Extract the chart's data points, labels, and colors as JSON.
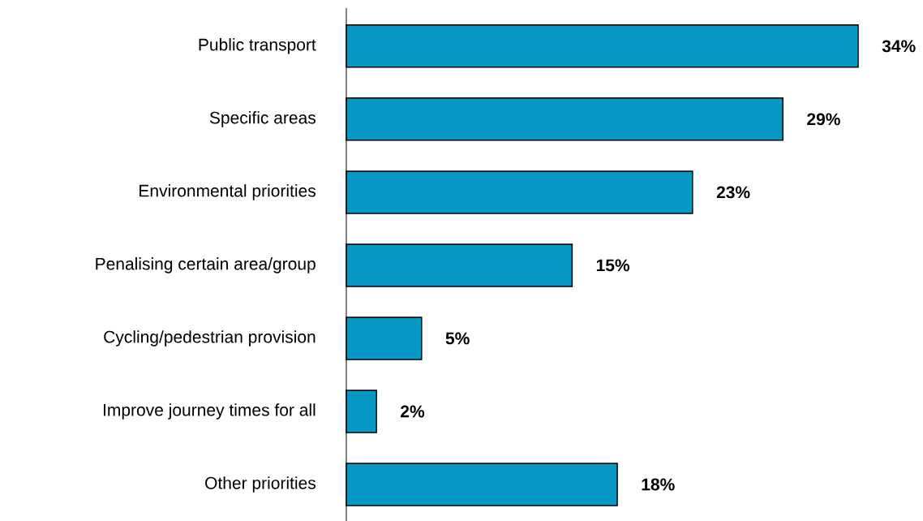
{
  "chart_data": {
    "type": "bar",
    "orientation": "horizontal",
    "categories": [
      "Public transport",
      "Specific areas",
      "Environmental priorities",
      "Penalising certain area/group",
      "Cycling/pedestrian provision",
      "Improve journey times for all",
      "Other priorities"
    ],
    "values": [
      34,
      29,
      23,
      15,
      5,
      2,
      18
    ],
    "value_labels": [
      "34%",
      "29%",
      "23%",
      "15%",
      "5%",
      "2%",
      "18%"
    ],
    "color": "#0798c5"
  }
}
